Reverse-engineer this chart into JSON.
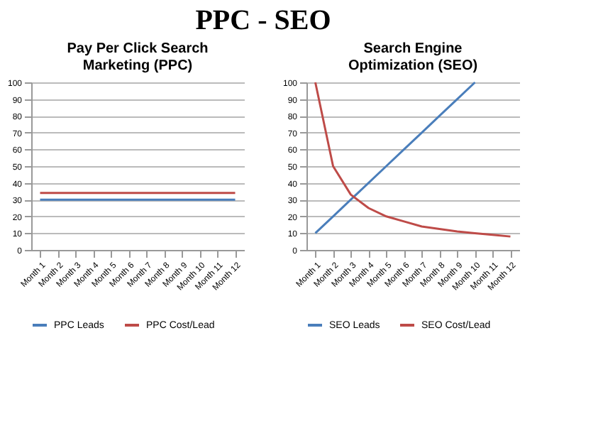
{
  "chart_data": [
    {
      "type": "line",
      "title": "Pay Per Click Search Marketing (PPC)",
      "annotations": [
        "PPC - SEO"
      ],
      "categories": [
        "Month 1",
        "Month 2",
        "Month 3",
        "Month 4",
        "Month 5",
        "Month 6",
        "Month 7",
        "Month 8",
        "Month 9",
        "Month 10",
        "Month 11",
        "Month 12"
      ],
      "series": [
        {
          "name": "PPC Leads",
          "color": "#4a7ebb",
          "values": [
            30,
            30,
            30,
            30,
            30,
            30,
            30,
            30,
            30,
            30,
            30,
            30
          ]
        },
        {
          "name": "PPC Cost/Lead",
          "color": "#be4b48",
          "values": [
            34,
            34,
            34,
            34,
            34,
            34,
            34,
            34,
            34,
            34,
            34,
            34
          ]
        }
      ],
      "ylim": [
        0,
        100
      ],
      "yticks": [
        0,
        10,
        20,
        30,
        40,
        50,
        60,
        70,
        80,
        90,
        100
      ],
      "grid": "y",
      "legend": "bottom",
      "marker": "none"
    },
    {
      "type": "line",
      "title": "Search Engine Optimization (SEO)",
      "categories": [
        "Month 1",
        "Month 2",
        "Month 3",
        "Month 4",
        "Month 5",
        "Month 6",
        "Month 7",
        "Month 8",
        "Month 9",
        "Month 10",
        "Month 11",
        "Month 12"
      ],
      "series": [
        {
          "name": "SEO Leads",
          "color": "#4a7ebb",
          "values": [
            10,
            20,
            30,
            40,
            50,
            60,
            70,
            80,
            90,
            100,
            null,
            null
          ]
        },
        {
          "name": "SEO Cost/Lead",
          "color": "#be4b48",
          "values": [
            100,
            50,
            33,
            25,
            20,
            17,
            14,
            12.5,
            11,
            10,
            9,
            8
          ]
        }
      ],
      "ylim": [
        0,
        100
      ],
      "yticks": [
        0,
        10,
        20,
        30,
        40,
        50,
        60,
        70,
        80,
        90,
        100
      ],
      "grid": "y",
      "legend": "bottom",
      "marker": "none"
    }
  ]
}
